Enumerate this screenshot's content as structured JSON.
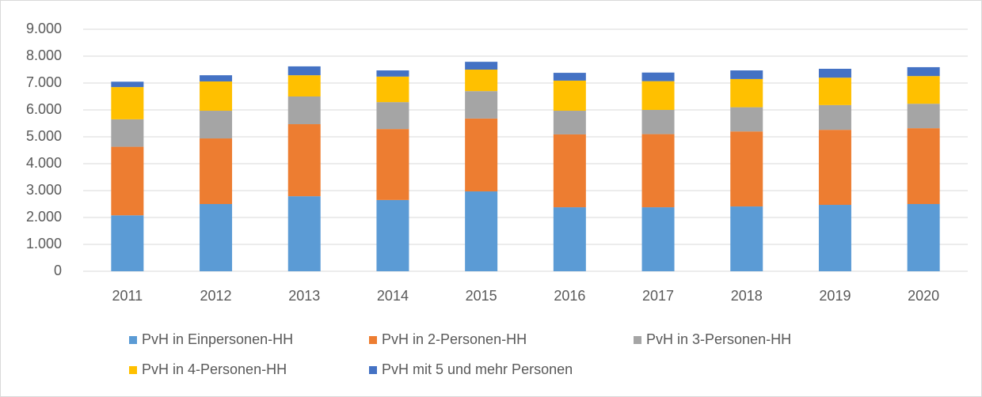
{
  "chart_data": {
    "type": "stacked_bar",
    "categories": [
      "2011",
      "2012",
      "2013",
      "2014",
      "2015",
      "2016",
      "2017",
      "2018",
      "2019",
      "2020"
    ],
    "series": [
      {
        "name": "PvH in Einpersonen-HH",
        "color": "#5b9bd5",
        "values": [
          2080,
          2500,
          2790,
          2650,
          2970,
          2380,
          2380,
          2410,
          2470,
          2500
        ]
      },
      {
        "name": "PvH in 2-Personen-HH",
        "color": "#ed7d31",
        "values": [
          2550,
          2440,
          2680,
          2640,
          2710,
          2710,
          2720,
          2790,
          2790,
          2820
        ]
      },
      {
        "name": "PvH in 3-Personen-HH",
        "color": "#a5a5a5",
        "values": [
          1020,
          1030,
          1030,
          1000,
          1020,
          880,
          900,
          900,
          920,
          910
        ]
      },
      {
        "name": "PvH in 4-Personen-HH",
        "color": "#ffc000",
        "values": [
          1200,
          1090,
          790,
          950,
          800,
          1120,
          1070,
          1050,
          1020,
          1030
        ]
      },
      {
        "name": "PvH mit 5 und mehr Personen",
        "color": "#4472c4",
        "values": [
          200,
          230,
          330,
          230,
          290,
          290,
          320,
          320,
          330,
          330
        ]
      }
    ],
    "ylim": [
      0,
      9000
    ],
    "yticks": [
      0,
      {
        "value": 1000,
        "label": "1.000"
      },
      {
        "value": 2000,
        "label": "2.000"
      },
      {
        "value": 3000,
        "label": "3.000"
      },
      {
        "value": 4000,
        "label": "4.000"
      },
      {
        "value": 5000,
        "label": "5.000"
      },
      {
        "value": 6000,
        "label": "6.000"
      },
      {
        "value": 7000,
        "label": "7.000"
      },
      {
        "value": 8000,
        "label": "8.000"
      },
      {
        "value": 9000,
        "label": "9.000"
      }
    ],
    "grid": true,
    "legend": "bottom"
  }
}
